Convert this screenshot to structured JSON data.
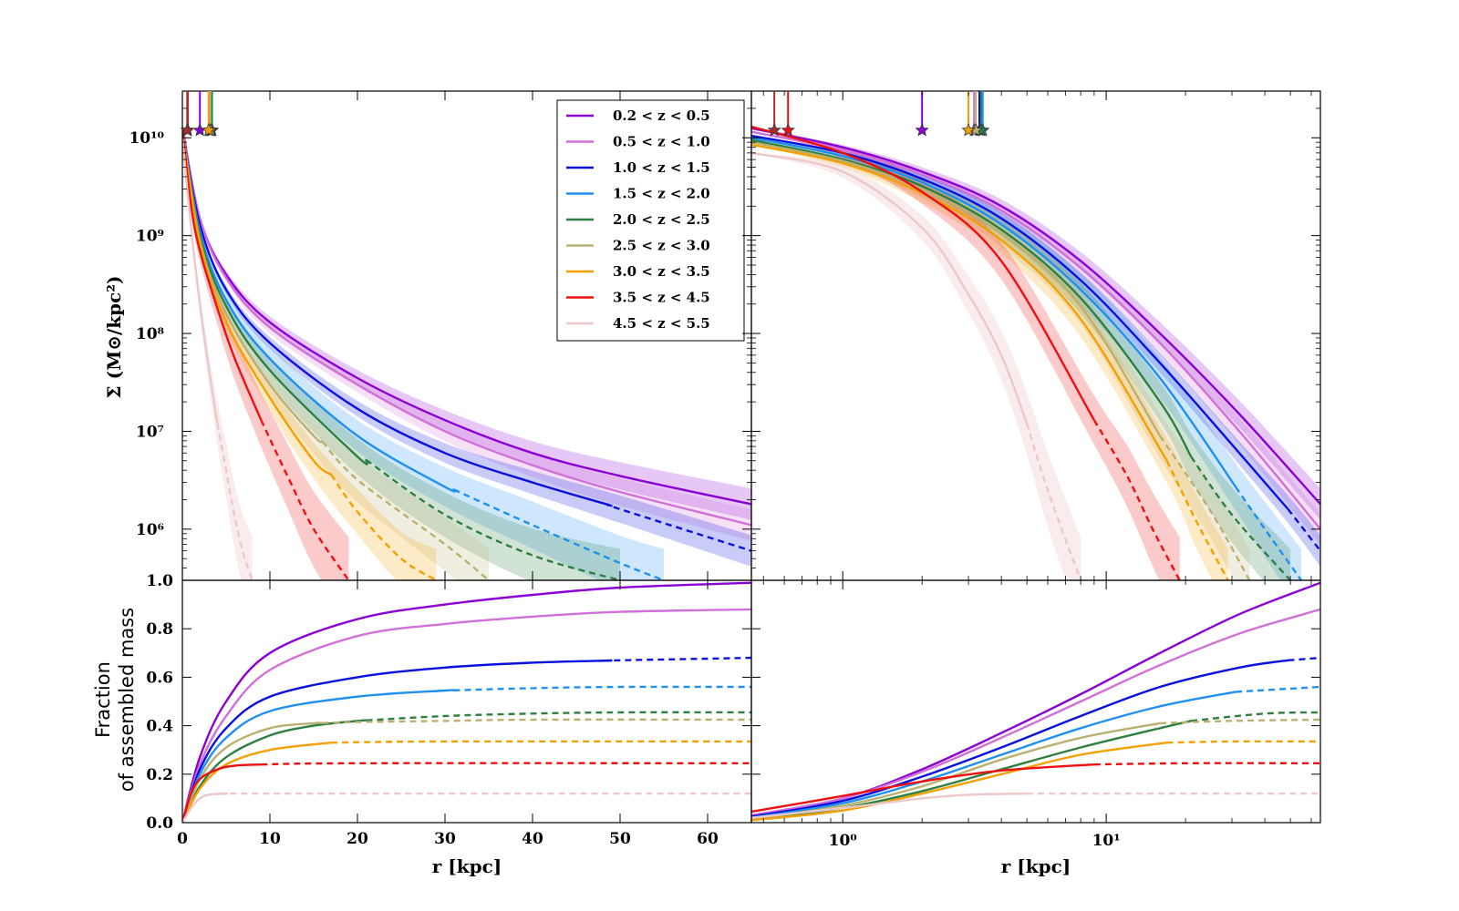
{
  "colors": {
    "0.2 < z < 0.5": "#8B00D4",
    "0.5 < z < 1.0": "#D070D8",
    "1.0 < z < 1.5": "#0A10E0",
    "1.5 < z < 2.0": "#2090F0",
    "2.0 < z < 2.5": "#2E8040",
    "2.5 < z < 3.0": "#BBB070",
    "3.0 < z < 3.5": "#F4A000",
    "3.5 < z < 4.5": "#EE1010",
    "4.5 < z < 5.5": "#EDC8C8"
  },
  "chart_data": [
    {
      "type": "line",
      "panel": "top-left",
      "xscale": "linear",
      "yscale": "log",
      "xlim": [
        0,
        65
      ],
      "ylim": [
        300000,
        30000000000
      ],
      "ylabel": "Σ (M⊙/kpc²)",
      "yticks": [
        "10⁶",
        "10⁷",
        "10⁸",
        "10⁹",
        "10¹⁰"
      ],
      "corner_label": "1.0",
      "legend_position": "top-right",
      "series": [
        {
          "name": "0.2 < z < 0.5",
          "x": [
            0,
            2,
            5,
            10,
            20,
            30,
            40,
            50,
            65
          ],
          "y": [
            13000000000,
            1500000000,
            400000000,
            130000000,
            35000000,
            13000000,
            6000000,
            3500000,
            1800000
          ],
          "solid_until": 65
        },
        {
          "name": "0.5 < z < 1.0",
          "x": [
            0,
            2,
            5,
            10,
            20,
            30,
            40,
            50,
            65
          ],
          "y": [
            13000000000,
            1500000000,
            370000000,
            115000000,
            30000000,
            10000000,
            4500000,
            2400000,
            1100000
          ],
          "solid_until": 65
        },
        {
          "name": "1.0 < z < 1.5",
          "x": [
            0,
            2,
            5,
            10,
            20,
            30,
            40,
            50,
            65
          ],
          "y": [
            12000000000,
            1300000000,
            280000000,
            80000000,
            17000000,
            6000000,
            3000000,
            1600000,
            600000
          ],
          "solid_until": 49
        },
        {
          "name": "1.5 < z < 2.0",
          "x": [
            0,
            2,
            5,
            10,
            20,
            30,
            40,
            50,
            55
          ],
          "y": [
            12000000000,
            1100000000,
            220000000,
            55000000,
            9000000,
            2700000,
            1100000,
            450000,
            300000
          ],
          "solid_until": 31
        },
        {
          "name": "2.0 < z < 2.5",
          "x": [
            0,
            2,
            5,
            10,
            20,
            30,
            40,
            50
          ],
          "y": [
            12000000000,
            1000000000,
            190000000,
            42000000,
            5500000,
            1400000,
            540000,
            300000
          ],
          "solid_until": 21
        },
        {
          "name": "2.5 < z < 3.0",
          "x": [
            0,
            2,
            5,
            10,
            15,
            20,
            30,
            35
          ],
          "y": [
            12000000000,
            900000000,
            160000000,
            30000000,
            9000000,
            3200000,
            700000,
            300000
          ],
          "solid_until": 16
        },
        {
          "name": "3.0 < z < 3.5",
          "x": [
            0,
            2,
            5,
            10,
            15,
            20,
            25,
            29
          ],
          "y": [
            12000000000,
            850000000,
            130000000,
            22000000,
            5000000,
            1500000,
            500000,
            300000
          ],
          "solid_until": 17
        },
        {
          "name": "3.5 < z < 4.5",
          "x": [
            0,
            1,
            2,
            4,
            6,
            9,
            12,
            15,
            19
          ],
          "y": [
            12000000000,
            2000000000,
            700000000,
            180000000,
            55000000,
            13000000,
            3500000,
            1000000,
            300000
          ],
          "solid_until": 9
        },
        {
          "name": "4.5 < z < 5.5",
          "x": [
            0,
            1,
            2,
            3,
            4,
            5,
            6,
            7,
            8
          ],
          "y": [
            10000000000,
            1200000000,
            200000000,
            45000000,
            12000000,
            4000000,
            1300000,
            550000,
            300000
          ],
          "solid_until": 4
        }
      ]
    },
    {
      "type": "line",
      "panel": "top-right",
      "xscale": "log",
      "yscale": "log",
      "xlim": [
        0.45,
        65
      ],
      "ylim": [
        300000,
        30000000000
      ],
      "series": [
        {
          "name": "0.2 < z < 0.5",
          "x": [
            0.45,
            1,
            2,
            4,
            8,
            16,
            32,
            65
          ],
          "y": [
            12500000000,
            8000000000,
            4500000000,
            2000000000,
            550000000,
            100000000,
            15000000,
            1800000
          ],
          "solid_until": 65
        },
        {
          "name": "0.5 < z < 1.0",
          "x": [
            0.45,
            1,
            2,
            4,
            8,
            16,
            32,
            65
          ],
          "y": [
            11500000000,
            7500000000,
            4200000000,
            1800000000,
            470000000,
            80000000,
            10000000,
            1000000
          ],
          "solid_until": 65
        },
        {
          "name": "1.0 < z < 1.5",
          "x": [
            0.45,
            1,
            2,
            4,
            8,
            16,
            32,
            49,
            65
          ],
          "y": [
            10500000000,
            7000000000,
            3800000000,
            1500000000,
            350000000,
            50000000,
            6000000,
            1600000,
            600000
          ],
          "solid_until": 49
        },
        {
          "name": "1.5 < z < 2.0",
          "x": [
            0.45,
            1,
            2,
            4,
            8,
            16,
            31,
            40,
            55
          ],
          "y": [
            10000000000,
            6500000000,
            3500000000,
            1300000000,
            280000000,
            35000000,
            2700000,
            1000000,
            300000
          ],
          "solid_until": 31
        },
        {
          "name": "2.0 < z < 2.5",
          "x": [
            0.45,
            1,
            2,
            4,
            8,
            16,
            21,
            30,
            50
          ],
          "y": [
            9500000000,
            6000000000,
            3200000000,
            1150000000,
            230000000,
            20000000,
            5500000,
            1400000,
            300000
          ],
          "solid_until": 21
        },
        {
          "name": "2.5 < z < 3.0",
          "x": [
            0.45,
            1,
            2,
            4,
            8,
            16,
            25,
            35
          ],
          "y": [
            9000000000,
            5800000000,
            3000000000,
            1050000000,
            190000000,
            9000000,
            1500000,
            300000
          ],
          "solid_until": 16
        },
        {
          "name": "3.0 < z < 3.5",
          "x": [
            0.45,
            1,
            2,
            4,
            8,
            17,
            22,
            29
          ],
          "y": [
            8500000000,
            5500000000,
            2700000000,
            900000000,
            140000000,
            5000000,
            1200000,
            300000
          ],
          "solid_until": 17
        },
        {
          "name": "3.5 < z < 4.5",
          "x": [
            0.45,
            1,
            2,
            4,
            9,
            12,
            15,
            19
          ],
          "y": [
            13000000000,
            7000000000,
            2800000000,
            550000000,
            13000000,
            3500000,
            1000000,
            300000
          ],
          "solid_until": 9
        },
        {
          "name": "4.5 < z < 5.5",
          "x": [
            0.45,
            1,
            2,
            3,
            4,
            5,
            6,
            8
          ],
          "y": [
            7000000000,
            4500000000,
            1200000000,
            250000000,
            60000000,
            12000000,
            2500000,
            300000
          ],
          "solid_until": 5
        }
      ],
      "markers": {
        "0.2 < z < 0.5": 2.0,
        "0.5 < z < 1.0": 3.15,
        "1.0 < z < 1.5": 3.3,
        "1.5 < z < 2.0": 3.4,
        "2.0 < z < 2.5": 3.35,
        "2.5 < z < 3.0": 3.2,
        "3.0 < z < 3.5": 3.0,
        "3.5 < z < 4.5": 0.62,
        "4.5 < z < 5.5": 0.55
      }
    },
    {
      "type": "line",
      "panel": "bottom-left",
      "xscale": "linear",
      "xlim": [
        0,
        65
      ],
      "ylim": [
        0,
        1.0
      ],
      "xlabel": "r [kpc]",
      "ylabel": "Fraction of assembled mass",
      "xticks": [
        "0",
        "10",
        "20",
        "30",
        "40",
        "50",
        "60"
      ],
      "yticks": [
        "0.0",
        "0.2",
        "0.4",
        "0.6",
        "0.8"
      ],
      "series": [
        {
          "name": "0.2 < z < 0.5",
          "x": [
            0,
            2,
            5,
            10,
            20,
            30,
            40,
            50,
            65
          ],
          "y": [
            0,
            0.27,
            0.5,
            0.7,
            0.84,
            0.9,
            0.94,
            0.97,
            0.99
          ],
          "solid_until": 65
        },
        {
          "name": "0.5 < z < 1.0",
          "x": [
            0,
            2,
            5,
            10,
            20,
            30,
            40,
            50,
            65
          ],
          "y": [
            0,
            0.24,
            0.44,
            0.63,
            0.77,
            0.82,
            0.85,
            0.87,
            0.88
          ],
          "solid_until": 65
        },
        {
          "name": "1.0 < z < 1.5",
          "x": [
            0,
            2,
            5,
            10,
            20,
            30,
            40,
            50,
            65
          ],
          "y": [
            0,
            0.22,
            0.39,
            0.52,
            0.6,
            0.64,
            0.66,
            0.67,
            0.68
          ],
          "solid_until": 49
        },
        {
          "name": "1.5 < z < 2.0",
          "x": [
            0,
            2,
            5,
            10,
            20,
            30,
            40,
            50,
            65
          ],
          "y": [
            0,
            0.2,
            0.35,
            0.46,
            0.52,
            0.545,
            0.555,
            0.56,
            0.56
          ],
          "solid_until": 31
        },
        {
          "name": "2.0 < z < 2.5",
          "x": [
            0,
            2,
            5,
            10,
            15,
            20,
            30,
            40,
            50,
            65
          ],
          "y": [
            0,
            0.15,
            0.27,
            0.36,
            0.4,
            0.42,
            0.44,
            0.45,
            0.455,
            0.455
          ],
          "solid_until": 21
        },
        {
          "name": "2.5 < z < 3.0",
          "x": [
            0,
            2,
            5,
            10,
            15,
            20,
            30,
            40,
            65
          ],
          "y": [
            0,
            0.18,
            0.31,
            0.39,
            0.41,
            0.415,
            0.42,
            0.425,
            0.425
          ],
          "solid_until": 16
        },
        {
          "name": "3.0 < z < 3.5",
          "x": [
            0,
            2,
            5,
            10,
            17,
            30,
            65
          ],
          "y": [
            0,
            0.14,
            0.24,
            0.3,
            0.33,
            0.335,
            0.335
          ],
          "solid_until": 17
        },
        {
          "name": "3.5 < z < 4.5",
          "x": [
            0,
            1,
            2,
            4,
            6,
            9,
            20,
            65
          ],
          "y": [
            0,
            0.12,
            0.18,
            0.22,
            0.235,
            0.24,
            0.245,
            0.245
          ],
          "solid_until": 9
        },
        {
          "name": "4.5 < z < 5.5",
          "x": [
            0,
            1,
            2,
            3,
            5,
            10,
            65
          ],
          "y": [
            0,
            0.06,
            0.1,
            0.115,
            0.12,
            0.12,
            0.12
          ],
          "solid_until": 5
        }
      ]
    },
    {
      "type": "line",
      "panel": "bottom-right",
      "xscale": "log",
      "xlim": [
        0.45,
        65
      ],
      "ylim": [
        0,
        1.0
      ],
      "xlabel": "r [kpc]",
      "xticks": [
        "10⁰",
        "10¹"
      ],
      "series": [
        {
          "name": "0.2 < z < 0.5",
          "x": [
            0.45,
            1,
            2,
            4,
            8,
            16,
            32,
            65
          ],
          "y": [
            0.03,
            0.1,
            0.22,
            0.37,
            0.53,
            0.7,
            0.86,
            0.99
          ],
          "solid_until": 65
        },
        {
          "name": "0.5 < z < 1.0",
          "x": [
            0.45,
            1,
            2,
            4,
            8,
            16,
            32,
            65
          ],
          "y": [
            0.03,
            0.1,
            0.21,
            0.35,
            0.5,
            0.65,
            0.78,
            0.88
          ],
          "solid_until": 65
        },
        {
          "name": "1.0 < z < 1.5",
          "x": [
            0.45,
            1,
            2,
            4,
            8,
            16,
            32,
            49,
            65
          ],
          "y": [
            0.025,
            0.09,
            0.19,
            0.31,
            0.44,
            0.56,
            0.64,
            0.67,
            0.68
          ],
          "solid_until": 49
        },
        {
          "name": "1.5 < z < 2.0",
          "x": [
            0.45,
            1,
            2,
            4,
            8,
            16,
            31,
            65
          ],
          "y": [
            0.02,
            0.08,
            0.17,
            0.28,
            0.39,
            0.48,
            0.54,
            0.56
          ],
          "solid_until": 31
        },
        {
          "name": "2.0 < z < 2.5",
          "x": [
            0.45,
            1,
            2,
            4,
            8,
            16,
            21,
            40,
            65
          ],
          "y": [
            0.015,
            0.06,
            0.13,
            0.22,
            0.31,
            0.39,
            0.42,
            0.45,
            0.455
          ],
          "solid_until": 21
        },
        {
          "name": "2.5 < z < 3.0",
          "x": [
            0.45,
            1,
            2,
            4,
            8,
            16,
            30,
            65
          ],
          "y": [
            0.015,
            0.07,
            0.15,
            0.26,
            0.35,
            0.41,
            0.42,
            0.425
          ],
          "solid_until": 16
        },
        {
          "name": "3.0 < z < 3.5",
          "x": [
            0.45,
            1,
            2,
            4,
            8,
            17,
            30,
            65
          ],
          "y": [
            0.01,
            0.05,
            0.12,
            0.2,
            0.28,
            0.33,
            0.335,
            0.335
          ],
          "solid_until": 17
        },
        {
          "name": "3.5 < z < 4.5",
          "x": [
            0.45,
            1,
            2,
            4,
            9,
            20,
            65
          ],
          "y": [
            0.045,
            0.11,
            0.17,
            0.215,
            0.24,
            0.245,
            0.245
          ],
          "solid_until": 9
        },
        {
          "name": "4.5 < z < 5.5",
          "x": [
            0.45,
            1,
            2,
            3,
            5,
            10,
            65
          ],
          "y": [
            0.02,
            0.06,
            0.1,
            0.115,
            0.12,
            0.12,
            0.12
          ],
          "solid_until": 5
        }
      ]
    }
  ]
}
